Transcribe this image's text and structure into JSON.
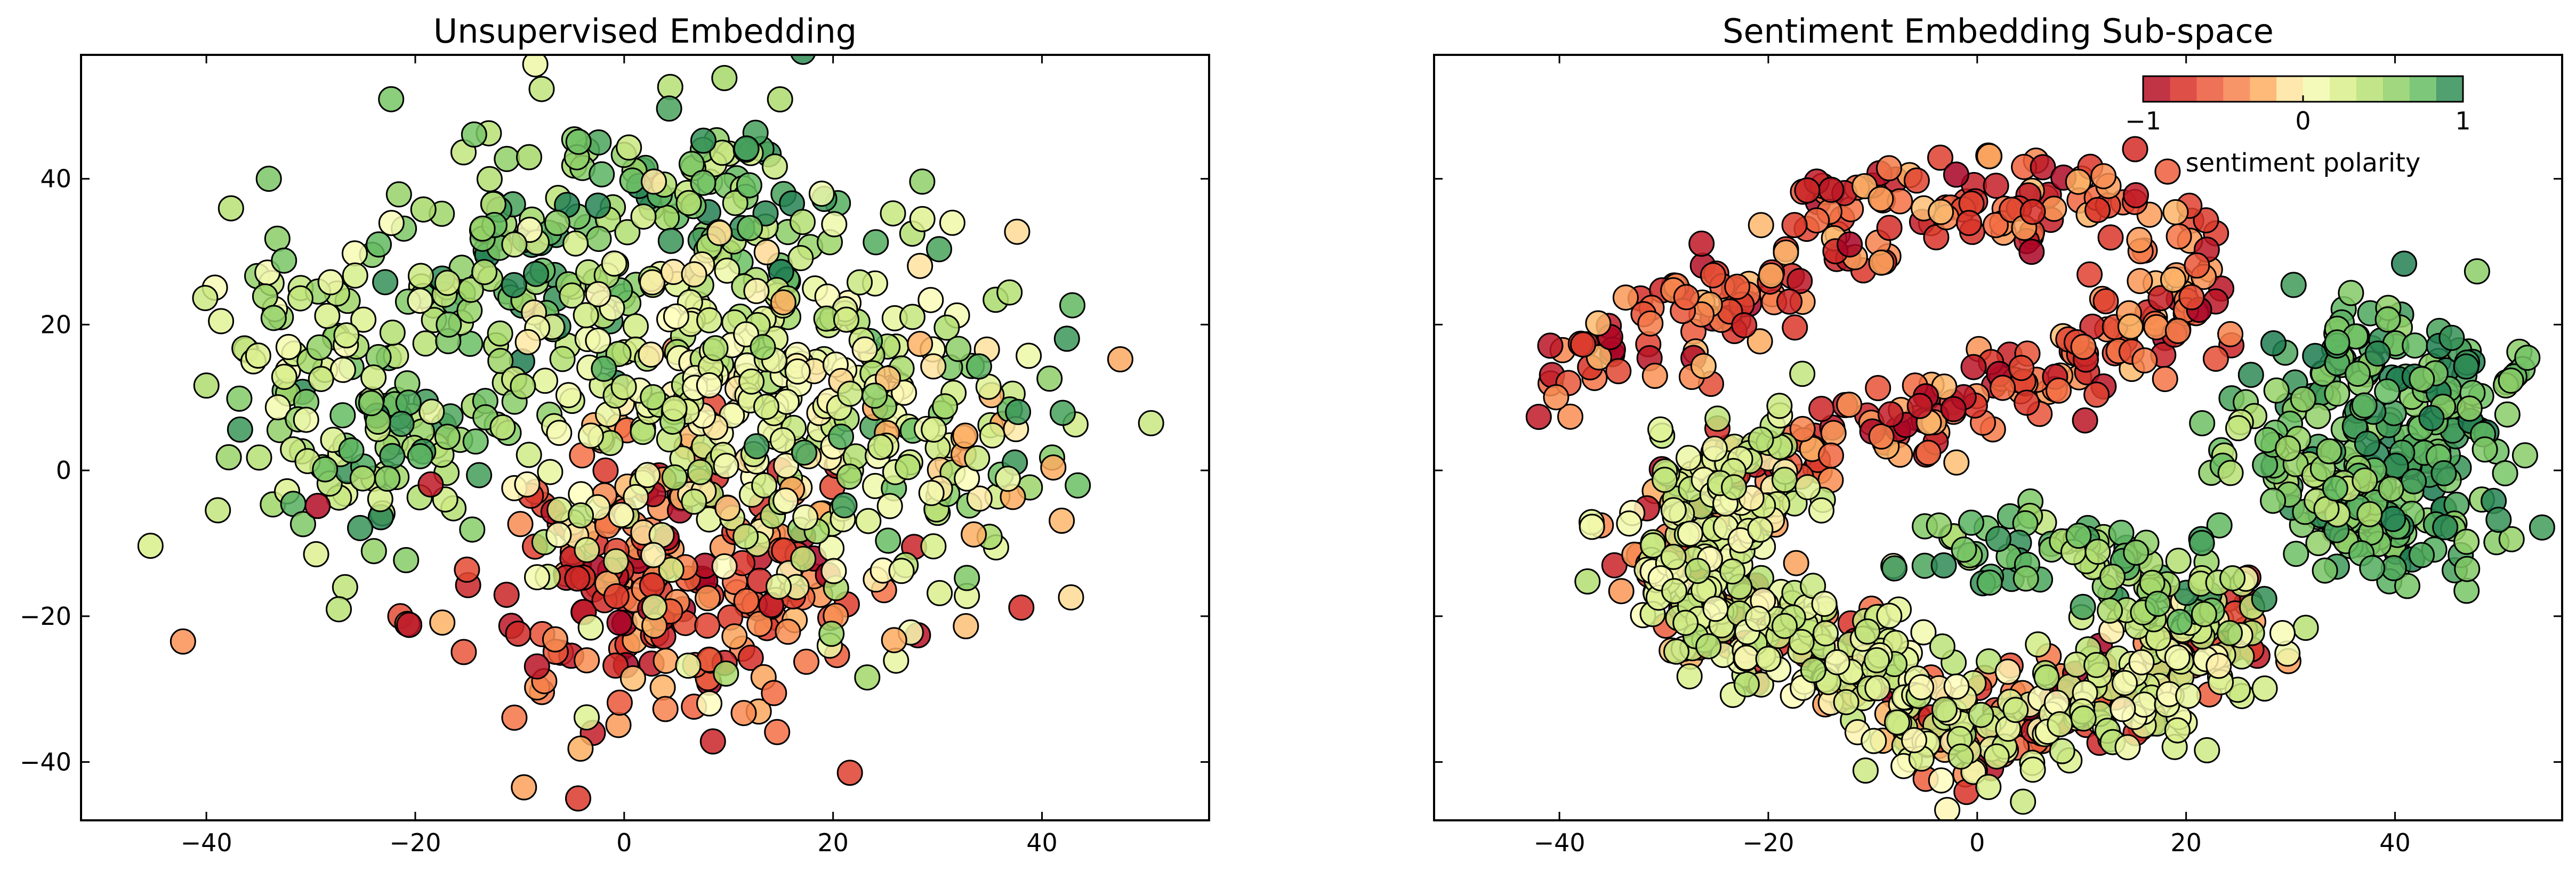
{
  "chart_data": [
    {
      "type": "scatter",
      "title": "Unsupervised Embedding",
      "xlabel": "",
      "ylabel": "",
      "xlim": [
        -52,
        56
      ],
      "ylim": [
        -48,
        57
      ],
      "xticks": [
        -40,
        -20,
        0,
        20,
        40
      ],
      "yticks": [
        -40,
        -20,
        0,
        20,
        40
      ],
      "x_tick_labels": [
        "−40",
        "−20",
        "0",
        "20",
        "40"
      ],
      "y_tick_labels": [
        "−40",
        "−20",
        "0",
        "20",
        "40"
      ],
      "grid": false,
      "clusters": [
        {
          "cx": -10,
          "cy": 28,
          "sx": 8,
          "sy": 9,
          "n": 110,
          "pmin": 0.35,
          "pmax": 1.0
        },
        {
          "cx": 10,
          "cy": 38,
          "sx": 7,
          "sy": 7,
          "n": 80,
          "pmin": 0.3,
          "pmax": 1.0
        },
        {
          "cx": -25,
          "cy": 2,
          "sx": 6,
          "sy": 8,
          "n": 80,
          "pmin": 0.2,
          "pmax": 1.0
        },
        {
          "cx": 2,
          "cy": -15,
          "sx": 11,
          "sy": 10,
          "n": 230,
          "pmin": -1.0,
          "pmax": -0.2
        },
        {
          "cx": 10,
          "cy": 10,
          "sx": 12,
          "sy": 13,
          "n": 280,
          "pmin": -0.1,
          "pmax": 0.5
        },
        {
          "cx": 28,
          "cy": 3,
          "sx": 9,
          "sy": 12,
          "n": 120,
          "pmin": -0.3,
          "pmax": 0.9
        },
        {
          "cx": -30,
          "cy": 18,
          "sx": 7,
          "sy": 8,
          "n": 60,
          "pmin": 0.0,
          "pmax": 0.7
        }
      ]
    },
    {
      "type": "scatter",
      "title": "Sentiment Embedding Sub-space",
      "xlabel": "",
      "ylabel": "",
      "xlim": [
        -52,
        56
      ],
      "ylim": [
        -48,
        57
      ],
      "xticks": [
        -40,
        -20,
        0,
        20,
        40
      ],
      "yticks": [
        -40,
        -20,
        0,
        20,
        40
      ],
      "x_tick_labels": [
        "−40",
        "−20",
        "0",
        "20",
        "40"
      ],
      "y_tick_labels": [],
      "grid": false,
      "colorbar": {
        "label": "sentiment polarity",
        "range": [
          -1,
          1
        ],
        "tick_labels": [
          "−1",
          "0",
          "1"
        ],
        "placement": "top-right",
        "colormap": "RdYlGn-like"
      },
      "strokes": [
        {
          "pts": [
            [
              -38,
              13
            ],
            [
              -30,
              20
            ],
            [
              -20,
              25
            ],
            [
              -12,
              37
            ],
            [
              0,
              37
            ],
            [
              12,
              36
            ],
            [
              20,
              28
            ],
            [
              18,
              18
            ],
            [
              10,
              14
            ],
            [
              0,
              10
            ],
            [
              -10,
              5
            ],
            [
              -20,
              3
            ],
            [
              -28,
              -6
            ],
            [
              -26,
              -20
            ],
            [
              -16,
              -24
            ],
            [
              -8,
              -28
            ],
            [
              -4,
              -34
            ],
            [
              0,
              -38
            ],
            [
              8,
              -34
            ],
            [
              18,
              -28
            ],
            [
              25,
              -19
            ]
          ],
          "pmin": -1.0,
          "pmax": -0.2,
          "n": 560,
          "w": 3.5
        },
        {
          "pts": [
            [
              -20,
              3
            ],
            [
              -28,
              -6
            ],
            [
              -26,
              -20
            ],
            [
              -16,
              -24
            ],
            [
              -8,
              -28
            ],
            [
              -4,
              -34
            ],
            [
              0,
              -38
            ],
            [
              8,
              -34
            ],
            [
              18,
              -28
            ],
            [
              25,
              -19
            ]
          ],
          "pmin": -0.05,
          "pmax": 0.45,
          "n": 420,
          "w": 3.8
        },
        {
          "pts": [
            [
              -4,
              -12
            ],
            [
              8,
              -10
            ],
            [
              16,
              -14
            ],
            [
              24,
              -18
            ]
          ],
          "pmin": 0.35,
          "pmax": 0.95,
          "n": 90,
          "w": 3.0
        },
        {
          "pts": [
            [
              30,
              10
            ],
            [
              35,
              15
            ],
            [
              42,
              18
            ],
            [
              45,
              10
            ],
            [
              40,
              0
            ],
            [
              34,
              -6
            ],
            [
              42,
              -8
            ],
            [
              47,
              -8
            ]
          ],
          "pmin": 0.55,
          "pmax": 1.0,
          "n": 260,
          "w": 4.0
        },
        {
          "pts": [
            [
              26,
              3
            ],
            [
              30,
              0
            ],
            [
              34,
              -4
            ]
          ],
          "pmin": 0.3,
          "pmax": 0.8,
          "n": 40,
          "w": 2.5
        }
      ]
    }
  ]
}
